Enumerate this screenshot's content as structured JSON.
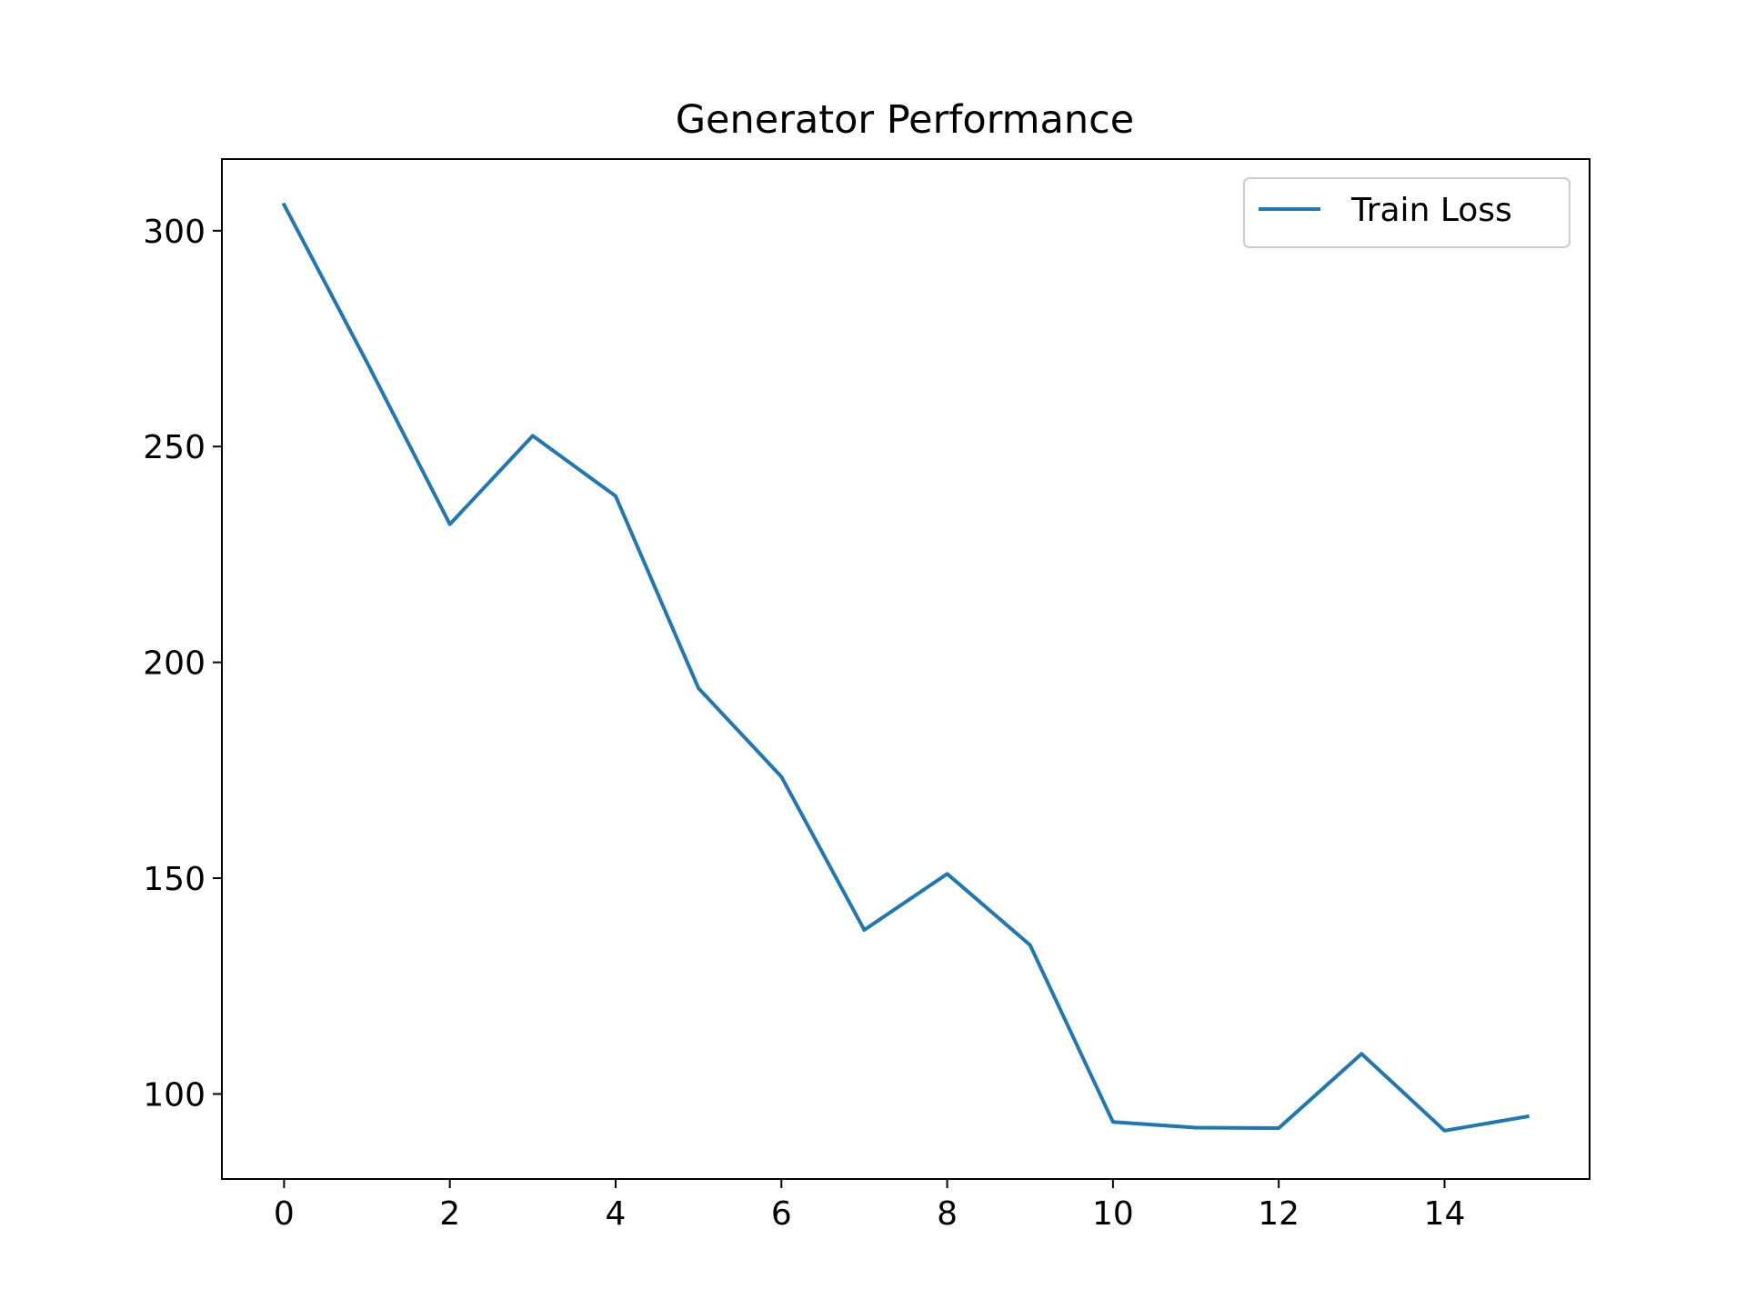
{
  "chart_data": {
    "type": "line",
    "title": "Generator Performance",
    "xlabel": "",
    "ylabel": "",
    "x": [
      0,
      1,
      2,
      3,
      4,
      5,
      6,
      7,
      8,
      9,
      10,
      11,
      12,
      13,
      14,
      15
    ],
    "series": [
      {
        "name": "Train Loss",
        "color": "#1f77b4",
        "values": [
          306,
          269.5,
          232,
          252.5,
          238.5,
          194,
          173.5,
          138,
          151,
          134.5,
          93.5,
          92.2,
          92.1,
          109.3,
          91.5,
          94.8
        ]
      }
    ],
    "xlim": [
      -0.75,
      15.75
    ],
    "ylim": [
      80.3,
      316.6
    ],
    "xticks": [
      0,
      2,
      4,
      6,
      8,
      10,
      12,
      14
    ],
    "yticks": [
      100,
      150,
      200,
      250,
      300
    ],
    "legend": "top-right",
    "grid": false
  }
}
